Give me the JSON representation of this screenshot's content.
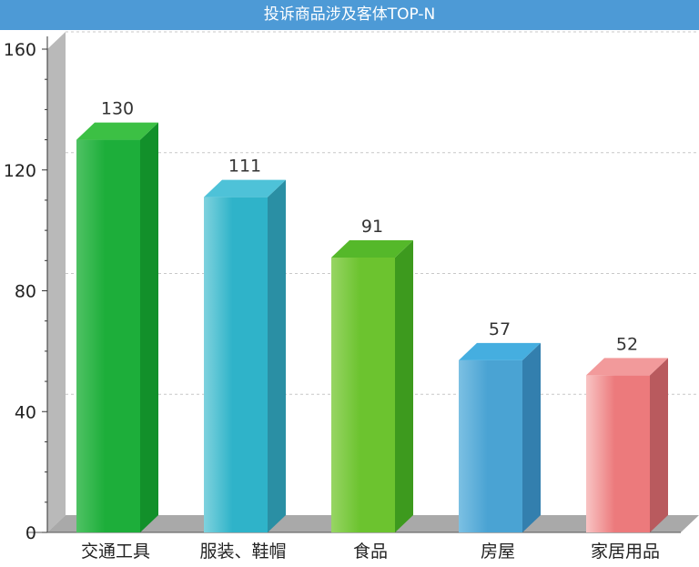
{
  "header": {
    "title": "投诉商品涉及客体TOP-N"
  },
  "chart_data": {
    "type": "bar",
    "title": "投诉商品涉及客体TOP-N",
    "categories": [
      "交通工具",
      "服装、鞋帽",
      "食品",
      "房屋",
      "家居用品"
    ],
    "values": [
      130,
      111,
      91,
      57,
      52
    ],
    "ylim": [
      0,
      160
    ],
    "yticks": [
      0,
      40,
      80,
      120,
      160
    ],
    "grid": true,
    "legend": "none",
    "colors": [
      {
        "front": "#1dae3a",
        "light": "#4fc264",
        "side": "#12902a",
        "top": "#3cc044"
      },
      {
        "front": "#2fb3c9",
        "light": "#7fd2de",
        "side": "#2a8fa4",
        "top": "#4ec2d8"
      },
      {
        "front": "#6cc32f",
        "light": "#97d564",
        "side": "#3d9a1e",
        "top": "#55b82a"
      },
      {
        "front": "#4aa3d3",
        "light": "#7cc0e3",
        "side": "#337fae",
        "top": "#45aee0"
      },
      {
        "front": "#ec7a7c",
        "light": "#f8c4c4",
        "side": "#b95a5e",
        "top": "#f29a9b"
      }
    ]
  }
}
